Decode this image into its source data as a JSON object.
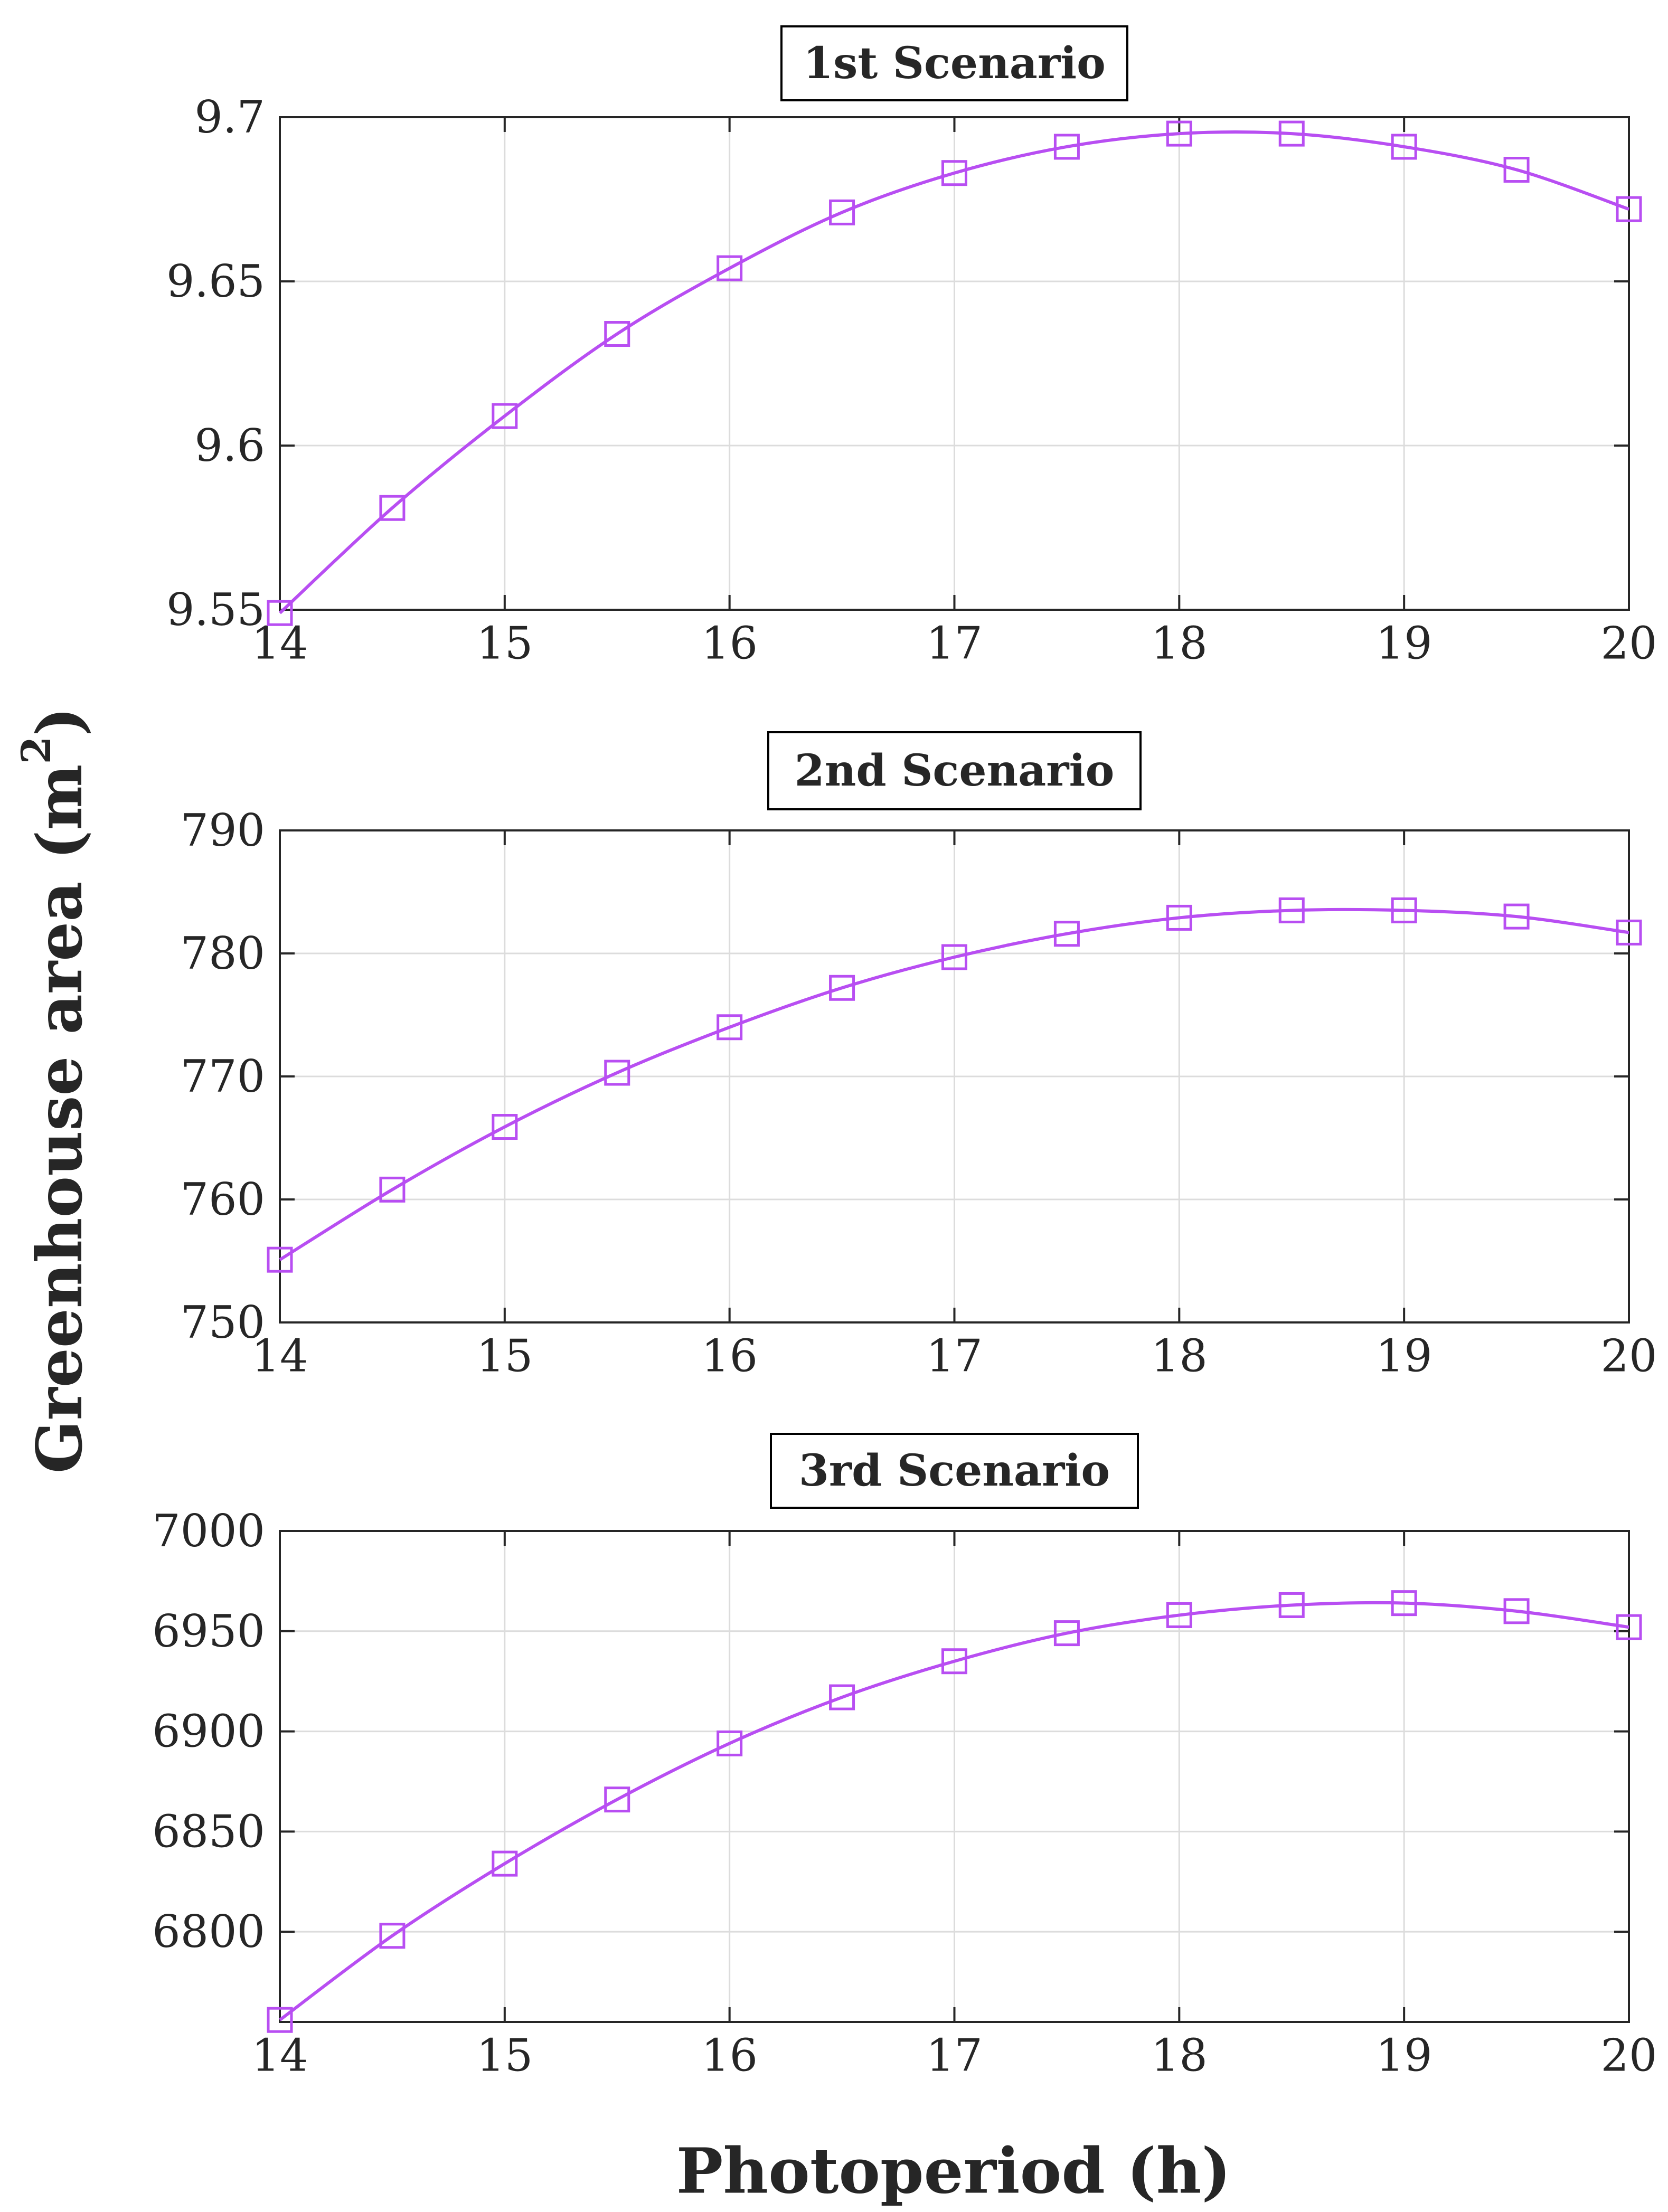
{
  "chart_data": [
    {
      "type": "line",
      "title": "1st Scenario",
      "xlabel": "Photoperiod (h)",
      "ylabel": "Greenhouse area (m2)",
      "xlim": [
        14,
        20
      ],
      "ylim": [
        9.55,
        9.7
      ],
      "xticks": [
        14,
        15,
        16,
        17,
        18,
        19,
        20
      ],
      "xtick_labels": [
        "14",
        "15",
        "16",
        "17",
        "18",
        "19",
        "20"
      ],
      "yticks": [
        9.55,
        9.6,
        9.65,
        9.7
      ],
      "ytick_labels": [
        "9.55",
        "9.6",
        "9.65",
        "9.7"
      ],
      "grid": true,
      "series": [
        {
          "name": "Greenhouse area",
          "color": "#b84ef2",
          "marker": "square",
          "x": [
            14,
            14.5,
            15,
            15.5,
            16,
            16.5,
            17,
            17.5,
            18,
            18.5,
            19,
            19.5,
            20
          ],
          "y": [
            9.549,
            9.581,
            9.609,
            9.634,
            9.654,
            9.671,
            9.683,
            9.691,
            9.695,
            9.695,
            9.691,
            9.684,
            9.672
          ]
        }
      ]
    },
    {
      "type": "line",
      "title": "2nd Scenario",
      "xlabel": "Photoperiod (h)",
      "ylabel": "Greenhouse area (m2)",
      "xlim": [
        14,
        20
      ],
      "ylim": [
        750,
        790
      ],
      "xticks": [
        14,
        15,
        16,
        17,
        18,
        19,
        20
      ],
      "xtick_labels": [
        "14",
        "15",
        "16",
        "17",
        "18",
        "19",
        "20"
      ],
      "yticks": [
        750,
        760,
        770,
        780,
        790
      ],
      "ytick_labels": [
        "750",
        "760",
        "770",
        "780",
        "790"
      ],
      "grid": true,
      "series": [
        {
          "name": "Greenhouse area",
          "color": "#b84ef2",
          "marker": "square",
          "x": [
            14,
            14.5,
            15,
            15.5,
            16,
            16.5,
            17,
            17.5,
            18,
            18.5,
            19,
            19.5,
            20
          ],
          "y": [
            755.1,
            760.8,
            765.9,
            770.3,
            774.0,
            777.2,
            779.7,
            781.6,
            782.9,
            783.5,
            783.5,
            783.0,
            781.7
          ]
        }
      ]
    },
    {
      "type": "line",
      "title": "3rd Scenario",
      "xlabel": "Photoperiod (h)",
      "ylabel": "Greenhouse area (m2)",
      "xlim": [
        14,
        20
      ],
      "ylim": [
        6755,
        7000
      ],
      "xticks": [
        14,
        15,
        16,
        17,
        18,
        19,
        20
      ],
      "xtick_labels": [
        "14",
        "15",
        "16",
        "17",
        "18",
        "19",
        "20"
      ],
      "yticks": [
        6800,
        6850,
        6900,
        6950,
        7000
      ],
      "ytick_labels": [
        "6800",
        "6850",
        "6900",
        "6950",
        "7000"
      ],
      "grid": true,
      "series": [
        {
          "name": "Greenhouse area",
          "color": "#b84ef2",
          "marker": "square",
          "x": [
            14,
            14.5,
            15,
            15.5,
            16,
            16.5,
            17,
            17.5,
            18,
            18.5,
            19,
            19.5,
            20
          ],
          "y": [
            6756,
            6798,
            6834,
            6866,
            6894,
            6917,
            6935,
            6949,
            6958,
            6963,
            6964,
            6960,
            6952
          ]
        }
      ]
    }
  ],
  "labels": {
    "y_axis_main": "Greenhouse area (m",
    "y_axis_superscript": "2",
    "y_axis_close": ")",
    "x_axis": "Photoperiod (h)"
  }
}
